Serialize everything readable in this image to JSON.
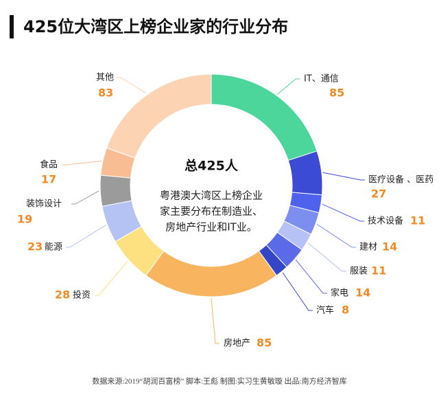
{
  "chart_data": {
    "type": "pie",
    "title": "425位大湾区上榜企业家的行业分布",
    "center_title": "总425人",
    "center_text": [
      "粤港澳大湾区上榜企业",
      "家主要分布在制造业、",
      "房地产行业和IT业。"
    ],
    "categories": [
      "IT、通信",
      "医疗设备 、医药",
      "技术设备",
      "建材",
      "服装",
      "家电",
      "汽车",
      "房地产",
      "投资",
      "能源",
      "装饰设计",
      "食品",
      "其他"
    ],
    "values": [
      85,
      27,
      11,
      14,
      11,
      14,
      8,
      85,
      28,
      23,
      19,
      17,
      83
    ],
    "colors": [
      "#4dd69b",
      "#3b4bd4",
      "#4f62ee",
      "#7c8ff0",
      "#b6c2f6",
      "#5b6be8",
      "#3446c6",
      "#f9b45f",
      "#fde07f",
      "#b5c3f4",
      "#9b9b9b",
      "#f9bd93",
      "#fdd4b3"
    ],
    "source": "数据来源:2019“胡润百富榜”  脚本:王彪  制图:实习生黄敏璇  出品:南方经济智库"
  }
}
